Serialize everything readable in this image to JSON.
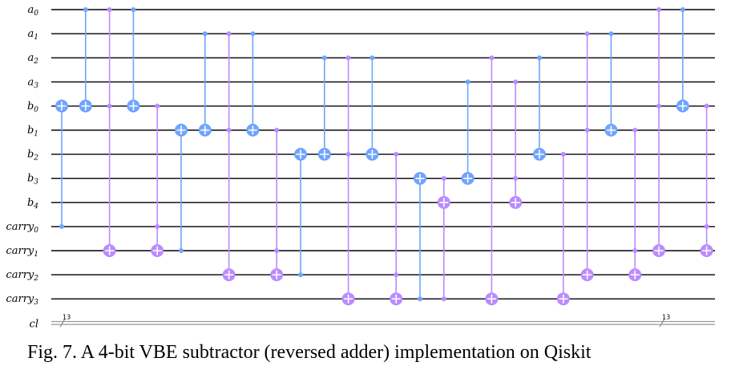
{
  "caption": "Fig. 7. A 4-bit VBE subtractor (reversed adder) implementation on Qiskit",
  "colors": {
    "cnot": "#6fa4ff",
    "toffoli": "#bb8bff",
    "wire": "#000000"
  },
  "qubits": [
    {
      "base": "a",
      "sub": "0"
    },
    {
      "base": "a",
      "sub": "1"
    },
    {
      "base": "a",
      "sub": "2"
    },
    {
      "base": "a",
      "sub": "3"
    },
    {
      "base": "b",
      "sub": "0"
    },
    {
      "base": "b",
      "sub": "1"
    },
    {
      "base": "b",
      "sub": "2"
    },
    {
      "base": "b",
      "sub": "3"
    },
    {
      "base": "b",
      "sub": "4"
    },
    {
      "base": "carry",
      "sub": "0"
    },
    {
      "base": "carry",
      "sub": "1"
    },
    {
      "base": "carry",
      "sub": "2"
    },
    {
      "base": "carry",
      "sub": "3"
    }
  ],
  "classical": {
    "label": "cl",
    "width_labels": [
      "13",
      "13"
    ]
  },
  "gates": [
    {
      "type": "cx",
      "controls": [
        9
      ],
      "target": 4
    },
    {
      "type": "cx",
      "controls": [
        0
      ],
      "target": 4
    },
    {
      "type": "ccx",
      "controls": [
        0,
        4
      ],
      "target": 10
    },
    {
      "type": "cx",
      "controls": [
        0
      ],
      "target": 4
    },
    {
      "type": "ccx",
      "controls": [
        4,
        9
      ],
      "target": 10
    },
    {
      "type": "cx",
      "controls": [
        10
      ],
      "target": 5
    },
    {
      "type": "cx",
      "controls": [
        1
      ],
      "target": 5
    },
    {
      "type": "ccx",
      "controls": [
        1,
        5
      ],
      "target": 11
    },
    {
      "type": "cx",
      "controls": [
        1
      ],
      "target": 5
    },
    {
      "type": "ccx",
      "controls": [
        5,
        10
      ],
      "target": 11
    },
    {
      "type": "cx",
      "controls": [
        11
      ],
      "target": 6
    },
    {
      "type": "cx",
      "controls": [
        2
      ],
      "target": 6
    },
    {
      "type": "ccx",
      "controls": [
        2,
        6
      ],
      "target": 12
    },
    {
      "type": "cx",
      "controls": [
        2
      ],
      "target": 6
    },
    {
      "type": "ccx",
      "controls": [
        6,
        11
      ],
      "target": 12
    },
    {
      "type": "cx",
      "controls": [
        12
      ],
      "target": 7
    },
    {
      "type": "ccx",
      "controls": [
        7,
        12
      ],
      "target": 8
    },
    {
      "type": "cx",
      "controls": [
        3
      ],
      "target": 7
    },
    {
      "type": "ccx",
      "controls": [
        2,
        12
      ],
      "target": 12
    },
    {
      "type": "ccx",
      "controls": [
        3,
        7
      ],
      "target": 8
    },
    {
      "type": "cx",
      "controls": [
        2
      ],
      "target": 6
    },
    {
      "type": "ccx",
      "controls": [
        6,
        12
      ],
      "target": 12
    },
    {
      "type": "ccx",
      "controls": [
        1,
        5
      ],
      "target": 11
    },
    {
      "type": "cx",
      "controls": [
        1
      ],
      "target": 5
    },
    {
      "type": "ccx",
      "controls": [
        5,
        10
      ],
      "target": 11
    },
    {
      "type": "ccx",
      "controls": [
        0,
        4
      ],
      "target": 10
    },
    {
      "type": "cx",
      "controls": [
        0
      ],
      "target": 4
    },
    {
      "type": "ccx",
      "controls": [
        4,
        9
      ],
      "target": 10
    }
  ]
}
